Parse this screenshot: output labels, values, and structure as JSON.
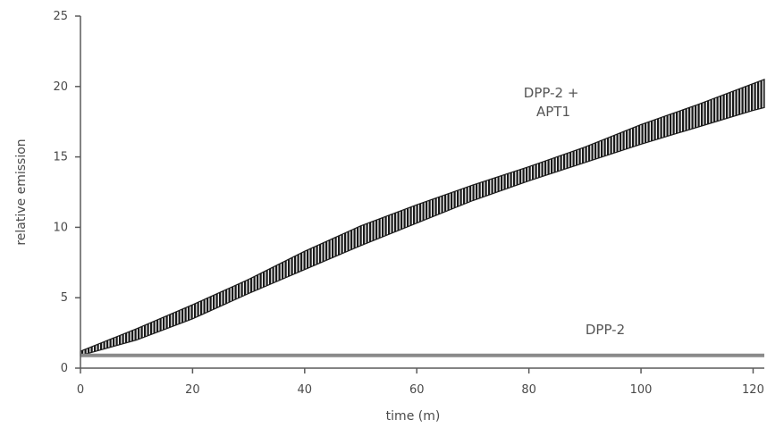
{
  "chart_data": {
    "type": "line",
    "title": "",
    "xlabel": "time (m)",
    "ylabel": "relative emission",
    "xlim": [
      0,
      122
    ],
    "ylim": [
      0,
      25
    ],
    "x_ticks": [
      "0",
      "20",
      "40",
      "60",
      "80",
      "100",
      "120"
    ],
    "y_ticks": [
      "0",
      "5",
      "10",
      "15",
      "20",
      "25"
    ],
    "grid": false,
    "legend": "none",
    "annotations": [
      {
        "lines": [
          "DPP-2 +",
          "APT1"
        ],
        "series": "DPP-2 + APT1"
      },
      {
        "lines": [
          "DPP-2"
        ],
        "series": "DPP-2"
      }
    ],
    "series": [
      {
        "name": "DPP-2 + APT1",
        "color": "#1a1a1a",
        "band": true,
        "x": [
          0,
          10,
          20,
          30,
          40,
          50,
          60,
          70,
          80,
          90,
          100,
          110,
          120,
          122
        ],
        "lower": [
          0.9,
          2.0,
          3.5,
          5.3,
          7.0,
          8.7,
          10.3,
          11.9,
          13.3,
          14.6,
          15.9,
          17.1,
          18.3,
          18.5
        ],
        "upper": [
          1.2,
          2.8,
          4.5,
          6.3,
          8.3,
          10.1,
          11.6,
          13.0,
          14.3,
          15.7,
          17.3,
          18.7,
          20.2,
          20.5
        ]
      },
      {
        "name": "DPP-2",
        "color": "#8a8a8a",
        "band": false,
        "x": [
          0,
          122
        ],
        "y": [
          0.9,
          0.9
        ]
      }
    ]
  }
}
